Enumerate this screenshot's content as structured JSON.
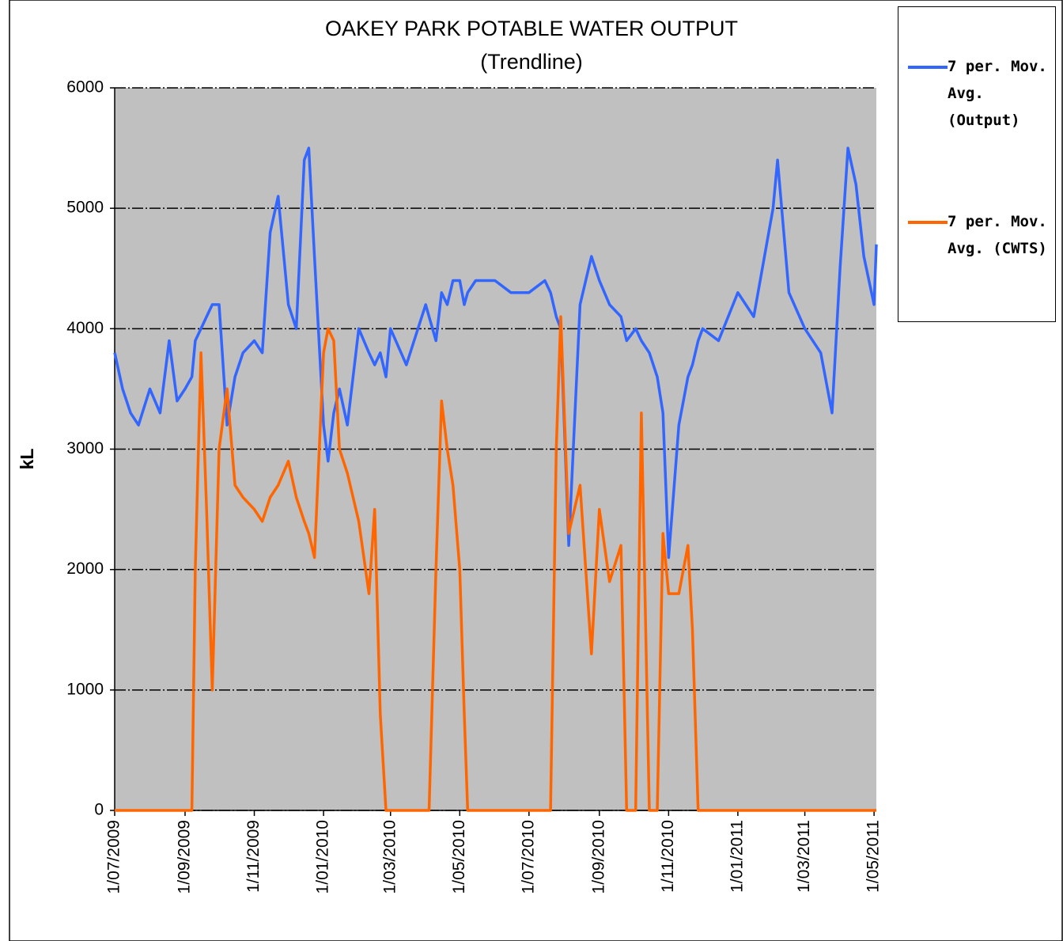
{
  "chart_data": {
    "type": "line",
    "title": "OAKEY PARK POTABLE WATER OUTPUT",
    "subtitle": "(Trendline)",
    "y_label": "kL",
    "x": [
      "1/07/2009",
      "8/07/2009",
      "15/07/2009",
      "22/07/2009",
      "1/08/2009",
      "10/08/2009",
      "18/08/2009",
      "25/08/2009",
      "1/09/2009",
      "7/09/2009",
      "10/09/2009",
      "15/09/2009",
      "20/09/2009",
      "25/09/2009",
      "1/10/2009",
      "8/10/2009",
      "15/10/2009",
      "22/10/2009",
      "1/11/2009",
      "8/11/2009",
      "15/11/2009",
      "22/11/2009",
      "1/12/2009",
      "8/12/2009",
      "15/12/2009",
      "19/12/2009",
      "24/12/2009",
      "1/01/2010",
      "5/01/2010",
      "10/01/2010",
      "15/01/2010",
      "22/01/2010",
      "1/02/2010",
      "10/02/2010",
      "15/02/2010",
      "20/02/2010",
      "25/02/2010",
      "1/03/2010",
      "15/03/2010",
      "1/04/2010",
      "4/04/2010",
      "10/04/2010",
      "15/04/2010",
      "20/04/2010",
      "25/04/2010",
      "1/05/2010",
      "5/05/2010",
      "8/05/2010",
      "15/05/2010",
      "1/06/2010",
      "15/06/2010",
      "1/07/2010",
      "15/07/2010",
      "20/07/2010",
      "25/07/2010",
      "29/07/2010",
      "5/08/2010",
      "15/08/2010",
      "25/08/2010",
      "1/09/2010",
      "10/09/2010",
      "20/09/2010",
      "25/09/2010",
      "3/10/2010",
      "8/10/2010",
      "15/10/2010",
      "22/10/2010",
      "27/10/2010",
      "1/11/2010",
      "10/11/2010",
      "18/11/2010",
      "22/11/2010",
      "27/11/2010",
      "1/12/2010",
      "15/12/2010",
      "1/01/2011",
      "15/01/2011",
      "1/02/2011",
      "5/02/2011",
      "15/02/2011",
      "1/03/2011",
      "15/03/2011",
      "25/03/2011",
      "1/04/2011",
      "8/04/2011",
      "15/04/2011",
      "22/04/2011",
      "1/05/2011",
      "3/05/2011"
    ],
    "series": [
      {
        "name": "7 per. Mov. Avg. (Output)",
        "color": "#3366ff",
        "values": [
          3800,
          3500,
          3300,
          3200,
          3500,
          3300,
          3900,
          3400,
          3500,
          3600,
          3900,
          4000,
          4100,
          4200,
          4200,
          3200,
          3600,
          3800,
          3900,
          3800,
          4800,
          5100,
          4200,
          4000,
          5400,
          5500,
          4600,
          3200,
          2900,
          3300,
          3500,
          3200,
          4000,
          3800,
          3700,
          3800,
          3600,
          4000,
          3700,
          4200,
          4100,
          3900,
          4300,
          4200,
          4400,
          4400,
          4200,
          4300,
          4400,
          4400,
          4300,
          4300,
          4400,
          4300,
          4100,
          4000,
          2200,
          4200,
          4600,
          4400,
          4200,
          4100,
          3900,
          4000,
          3900,
          3800,
          3600,
          3300,
          2100,
          3200,
          3600,
          3700,
          3900,
          4000,
          3900,
          4300,
          4100,
          5000,
          5400,
          4300,
          4000,
          3800,
          3300,
          4500,
          5500,
          5200,
          4600,
          4200,
          4700
        ]
      },
      {
        "name": "7 per. Mov. Avg. (CWTS)",
        "color": "#ff6600",
        "values": [
          0,
          0,
          0,
          0,
          0,
          0,
          0,
          0,
          0,
          0,
          2000,
          3800,
          2500,
          1000,
          3000,
          3500,
          2700,
          2600,
          2500,
          2400,
          2600,
          2700,
          2900,
          2600,
          2400,
          2300,
          2100,
          3800,
          4000,
          3900,
          3000,
          2800,
          2400,
          1800,
          2500,
          800,
          0,
          0,
          0,
          0,
          0,
          2000,
          3400,
          3000,
          2700,
          2000,
          800,
          0,
          0,
          0,
          0,
          0,
          0,
          0,
          3000,
          4100,
          2300,
          2700,
          1300,
          2500,
          1900,
          2200,
          0,
          0,
          3300,
          0,
          0,
          2300,
          1800,
          1800,
          2200,
          1500,
          0,
          0,
          0,
          0,
          0,
          0,
          0,
          0,
          0,
          0,
          0,
          0,
          0,
          0,
          0,
          0,
          0
        ]
      }
    ],
    "xlim": [
      "1/07/2009",
      "3/05/2011"
    ],
    "xticks": [
      "1/07/2009",
      "1/09/2009",
      "1/11/2009",
      "1/01/2010",
      "1/03/2010",
      "1/05/2010",
      "1/07/2010",
      "1/09/2010",
      "1/11/2010",
      "1/01/2011",
      "1/03/2011",
      "1/05/2011"
    ],
    "ylim": [
      0,
      6000
    ],
    "yticks": [
      0,
      1000,
      2000,
      3000,
      4000,
      5000,
      6000
    ],
    "grid": true,
    "legend": "right"
  }
}
